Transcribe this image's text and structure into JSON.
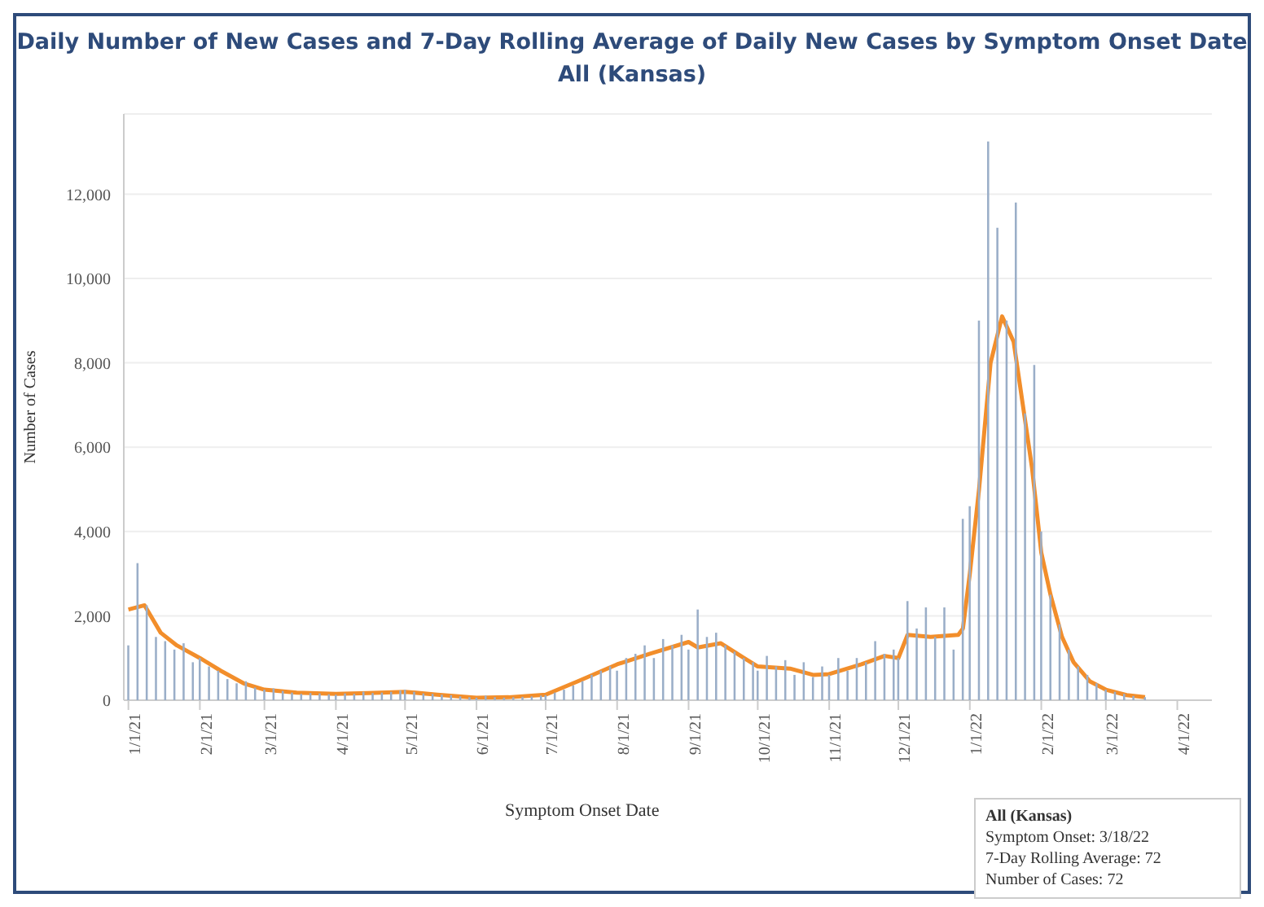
{
  "chart_data": {
    "type": "bar",
    "title": "Daily Number of New Cases and 7-Day Rolling Average of Daily New Cases by Symptom Onset Date",
    "subtitle": "All (Kansas)",
    "xlabel": "Symptom Onset Date",
    "ylabel": "Number of Cases",
    "annotations": [
      "All (Kansas)",
      "Symptom Onset: 3/18/22",
      "7-Day Rolling Average: 72",
      "Number of Cases: 72"
    ],
    "xlim": [
      "2020-12-30",
      "2022-04-16"
    ],
    "xticks": [
      {
        "value": "2021-01-01",
        "label": "1/1/21"
      },
      {
        "value": "2021-02-01",
        "label": "2/1/21"
      },
      {
        "value": "2021-03-01",
        "label": "3/1/21"
      },
      {
        "value": "2021-04-01",
        "label": "4/1/21"
      },
      {
        "value": "2021-05-01",
        "label": "5/1/21"
      },
      {
        "value": "2021-06-01",
        "label": "6/1/21"
      },
      {
        "value": "2021-07-01",
        "label": "7/1/21"
      },
      {
        "value": "2021-08-01",
        "label": "8/1/21"
      },
      {
        "value": "2021-09-01",
        "label": "9/1/21"
      },
      {
        "value": "2021-10-01",
        "label": "10/1/21"
      },
      {
        "value": "2021-11-01",
        "label": "11/1/21"
      },
      {
        "value": "2021-12-01",
        "label": "12/1/21"
      },
      {
        "value": "2022-01-01",
        "label": "1/1/22"
      },
      {
        "value": "2022-02-01",
        "label": "2/1/22"
      },
      {
        "value": "2022-03-01",
        "label": "3/1/22"
      },
      {
        "value": "2022-04-01",
        "label": "4/1/22"
      }
    ],
    "ylim": [
      0,
      13900
    ],
    "yticks": [
      {
        "value": 0,
        "label": "0"
      },
      {
        "value": 2000,
        "label": "2,000"
      },
      {
        "value": 4000,
        "label": "4,000"
      },
      {
        "value": 6000,
        "label": "6,000"
      },
      {
        "value": 8000,
        "label": "8,000"
      },
      {
        "value": 10000,
        "label": "10,000"
      },
      {
        "value": 12000,
        "label": "12,000"
      }
    ],
    "grid": "y",
    "marker": "none",
    "line_style": "solid",
    "series": [
      {
        "color": "#9aaec8",
        "x": [
          "2021-01-01",
          "2021-01-05",
          "2021-01-09",
          "2021-01-13",
          "2021-01-17",
          "2021-01-21",
          "2021-01-25",
          "2021-01-29",
          "2021-02-01",
          "2021-02-05",
          "2021-02-09",
          "2021-02-13",
          "2021-02-17",
          "2021-02-21",
          "2021-02-25",
          "2021-03-01",
          "2021-03-05",
          "2021-03-09",
          "2021-03-13",
          "2021-03-17",
          "2021-03-21",
          "2021-03-25",
          "2021-03-29",
          "2021-04-01",
          "2021-04-05",
          "2021-04-09",
          "2021-04-13",
          "2021-04-17",
          "2021-04-21",
          "2021-04-25",
          "2021-04-29",
          "2021-05-01",
          "2021-05-05",
          "2021-05-09",
          "2021-05-13",
          "2021-05-17",
          "2021-05-21",
          "2021-05-25",
          "2021-05-29",
          "2021-06-01",
          "2021-06-05",
          "2021-06-09",
          "2021-06-13",
          "2021-06-17",
          "2021-06-21",
          "2021-06-25",
          "2021-06-29",
          "2021-07-01",
          "2021-07-05",
          "2021-07-09",
          "2021-07-13",
          "2021-07-17",
          "2021-07-21",
          "2021-07-25",
          "2021-07-29",
          "2021-08-01",
          "2021-08-05",
          "2021-08-09",
          "2021-08-13",
          "2021-08-17",
          "2021-08-21",
          "2021-08-25",
          "2021-08-29",
          "2021-09-01",
          "2021-09-05",
          "2021-09-09",
          "2021-09-13",
          "2021-09-17",
          "2021-09-21",
          "2021-09-25",
          "2021-09-29",
          "2021-10-01",
          "2021-10-05",
          "2021-10-09",
          "2021-10-13",
          "2021-10-17",
          "2021-10-21",
          "2021-10-25",
          "2021-10-29",
          "2021-11-01",
          "2021-11-05",
          "2021-11-09",
          "2021-11-13",
          "2021-11-17",
          "2021-11-21",
          "2021-11-25",
          "2021-11-29",
          "2021-12-01",
          "2021-12-05",
          "2021-12-09",
          "2021-12-13",
          "2021-12-17",
          "2021-12-21",
          "2021-12-25",
          "2021-12-29",
          "2022-01-01",
          "2022-01-05",
          "2022-01-09",
          "2022-01-13",
          "2022-01-17",
          "2022-01-21",
          "2022-01-25",
          "2022-01-29",
          "2022-02-01",
          "2022-02-05",
          "2022-02-09",
          "2022-02-13",
          "2022-02-17",
          "2022-02-21",
          "2022-02-25",
          "2022-03-01",
          "2022-03-05",
          "2022-03-09",
          "2022-03-13",
          "2022-03-18"
        ],
        "values": [
          1300,
          3250,
          2250,
          1500,
          1400,
          1200,
          1350,
          900,
          1000,
          800,
          700,
          500,
          400,
          450,
          300,
          250,
          280,
          220,
          180,
          150,
          170,
          160,
          140,
          130,
          160,
          150,
          200,
          170,
          180,
          200,
          230,
          250,
          200,
          160,
          150,
          130,
          120,
          90,
          70,
          60,
          110,
          70,
          60,
          70,
          80,
          90,
          110,
          120,
          180,
          250,
          350,
          450,
          600,
          700,
          800,
          700,
          1000,
          1100,
          1300,
          1000,
          1450,
          1300,
          1550,
          1200,
          2150,
          1500,
          1600,
          1300,
          1150,
          1000,
          900,
          700,
          1050,
          800,
          950,
          600,
          900,
          550,
          800,
          600,
          1000,
          700,
          1000,
          900,
          1400,
          1100,
          1200,
          1000,
          2350,
          1700,
          2200,
          1500,
          2200,
          1200,
          4300,
          4600,
          9000,
          13250,
          11200,
          9000,
          11800,
          6800,
          7950,
          4000,
          2500,
          1800,
          1200,
          800,
          600,
          400,
          250,
          200,
          150,
          100,
          72
        ]
      },
      {
        "type": "line",
        "color": "#f28e2b",
        "x": [
          "2021-01-01",
          "2021-01-08",
          "2021-01-15",
          "2021-01-22",
          "2021-02-01",
          "2021-02-10",
          "2021-02-20",
          "2021-03-01",
          "2021-03-15",
          "2021-04-01",
          "2021-04-15",
          "2021-05-01",
          "2021-05-15",
          "2021-06-01",
          "2021-06-15",
          "2021-07-01",
          "2021-07-15",
          "2021-08-01",
          "2021-08-15",
          "2021-09-01",
          "2021-09-05",
          "2021-09-15",
          "2021-09-25",
          "2021-10-01",
          "2021-10-15",
          "2021-10-25",
          "2021-11-01",
          "2021-11-15",
          "2021-11-25",
          "2021-12-01",
          "2021-12-05",
          "2021-12-15",
          "2021-12-27",
          "2021-12-29",
          "2022-01-01",
          "2022-01-05",
          "2022-01-10",
          "2022-01-15",
          "2022-01-20",
          "2022-01-24",
          "2022-01-28",
          "2022-02-01",
          "2022-02-05",
          "2022-02-10",
          "2022-02-15",
          "2022-02-22",
          "2022-03-01",
          "2022-03-10",
          "2022-03-18"
        ],
        "values": [
          2150,
          2250,
          1600,
          1300,
          1000,
          700,
          400,
          250,
          180,
          150,
          170,
          200,
          130,
          60,
          70,
          130,
          450,
          850,
          1100,
          1380,
          1250,
          1350,
          1000,
          800,
          750,
          600,
          620,
          850,
          1050,
          1000,
          1550,
          1500,
          1550,
          1700,
          3000,
          5000,
          8000,
          9100,
          8500,
          7000,
          5500,
          3500,
          2500,
          1500,
          900,
          450,
          250,
          120,
          72
        ]
      }
    ]
  }
}
